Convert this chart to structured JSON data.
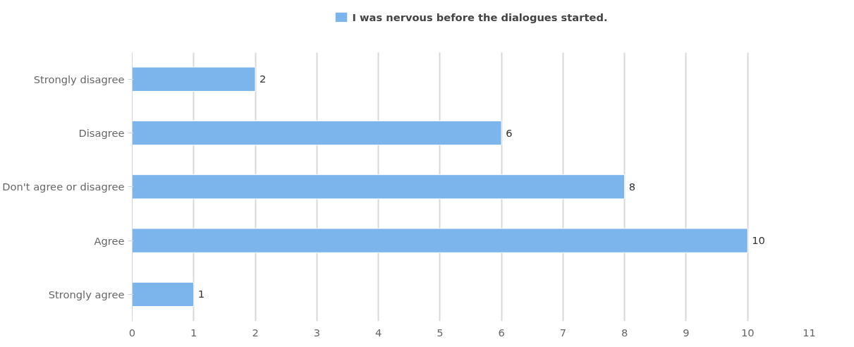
{
  "chart_data": {
    "type": "bar",
    "orientation": "horizontal",
    "categories": [
      "Strongly disagree",
      "Disagree",
      "Don't agree or disagree",
      "Agree",
      "Strongly agree"
    ],
    "series": [
      {
        "name": "I was nervous before the dialogues started.",
        "color": "#7cb5ec",
        "values": [
          2,
          6,
          8,
          10,
          1
        ]
      }
    ],
    "xlim": [
      0,
      11
    ],
    "xticks": [
      0,
      1,
      2,
      3,
      4,
      5,
      6,
      7,
      8,
      9,
      10,
      11
    ],
    "grid": "x",
    "legend": "top",
    "data_labels": true
  }
}
